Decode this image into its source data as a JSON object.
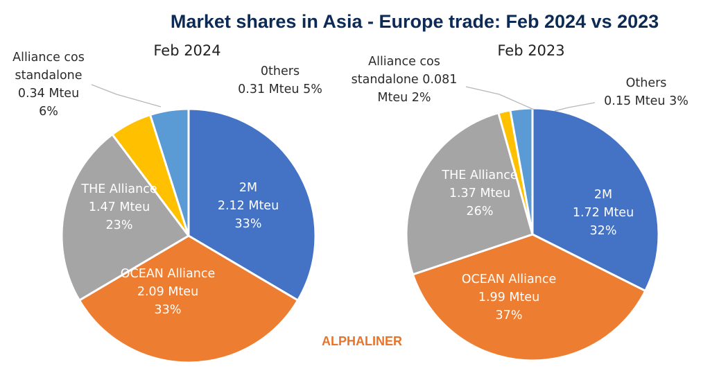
{
  "title": "Market shares in Asia - Europe trade: Feb 2024 vs 2023",
  "watermark": "ALPHALINER",
  "colors": {
    "title": "#0b2a55",
    "watermark": "#e8742a"
  },
  "chart_data": [
    {
      "type": "pie",
      "title": "Feb 2024",
      "start_angle_deg": 0,
      "slices": [
        {
          "name": "2M",
          "value": 2.12,
          "percent": 33,
          "color": "#4472c4",
          "label": [
            "2M",
            "2.12 Mteu",
            "33%"
          ],
          "label_position": "inside"
        },
        {
          "name": "OCEAN Alliance",
          "value": 2.09,
          "percent": 33,
          "color": "#ed7d31",
          "label": [
            "OCEAN Alliance",
            "2.09 Mteu",
            "33%"
          ],
          "label_position": "inside"
        },
        {
          "name": "THE Alliance",
          "value": 1.47,
          "percent": 23,
          "color": "#a5a5a5",
          "label": [
            "THE Alliance",
            "1.47 Mteu",
            "23%"
          ],
          "label_position": "inside"
        },
        {
          "name": "Alliance cos standalone",
          "value": 0.34,
          "percent": 6,
          "color": "#ffc000",
          "label": [
            "Alliance cos",
            "standalone",
            "0.34 Mteu",
            "6%"
          ],
          "label_position": "outside"
        },
        {
          "name": "Others",
          "value": 0.31,
          "percent": 5,
          "color": "#5b9bd5",
          "label": [
            "0thers",
            "0.31 Mteu 5%"
          ],
          "label_position": "outside"
        }
      ]
    },
    {
      "type": "pie",
      "title": "Feb 2023",
      "start_angle_deg": 0,
      "slices": [
        {
          "name": "2M",
          "value": 1.72,
          "percent": 32,
          "color": "#4472c4",
          "label": [
            "2M",
            "1.72 Mteu",
            "32%"
          ],
          "label_position": "inside"
        },
        {
          "name": "OCEAN Alliance",
          "value": 1.99,
          "percent": 37,
          "color": "#ed7d31",
          "label": [
            "OCEAN Alliance",
            "1.99 Mteu",
            "37%"
          ],
          "label_position": "inside"
        },
        {
          "name": "THE Alliance",
          "value": 1.37,
          "percent": 26,
          "color": "#a5a5a5",
          "label": [
            "THE Alliance",
            "1.37 Mteu",
            "26%"
          ],
          "label_position": "inside"
        },
        {
          "name": "Alliance cos standalone",
          "value": 0.081,
          "percent": 2,
          "color": "#ffc000",
          "label": [
            "Alliance cos",
            "standalone 0.081",
            "Mteu 2%"
          ],
          "label_position": "outside"
        },
        {
          "name": "Others",
          "value": 0.15,
          "percent": 3,
          "color": "#5b9bd5",
          "label": [
            "Others",
            "0.15 Mteu 3%"
          ],
          "label_position": "outside"
        }
      ]
    }
  ]
}
